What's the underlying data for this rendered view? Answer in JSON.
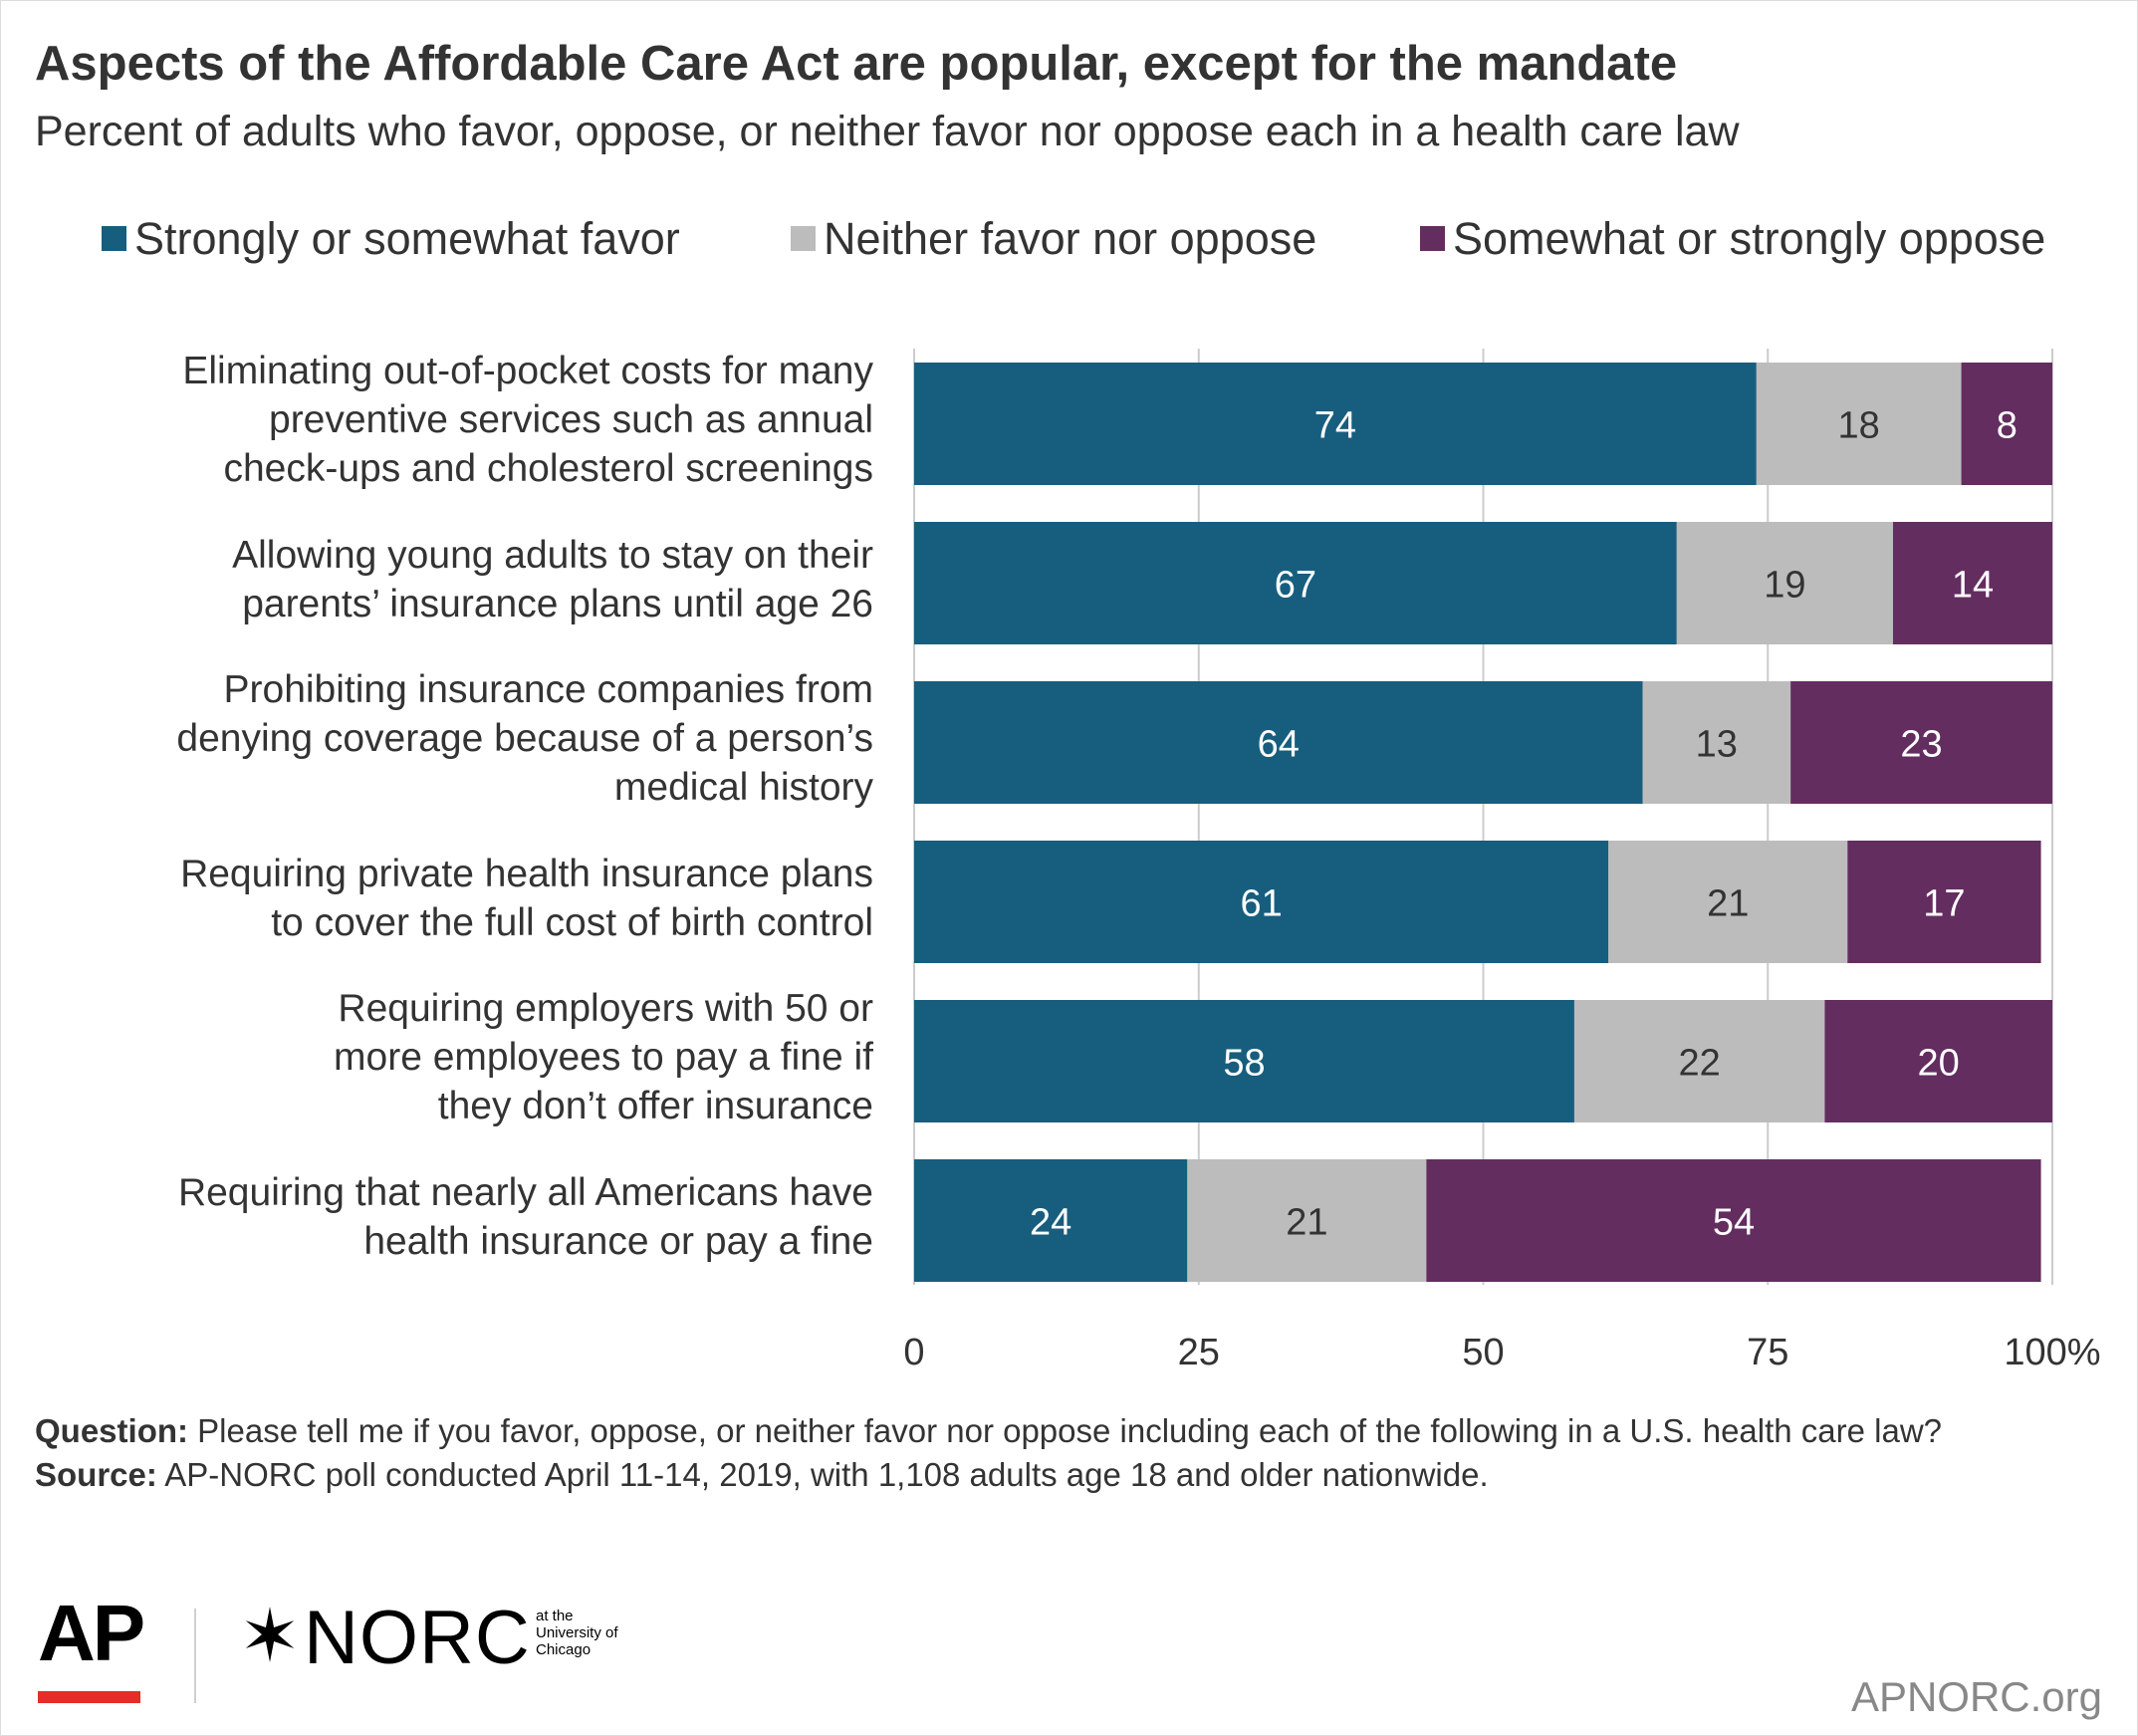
{
  "title": "Aspects of the Affordable Care Act are popular, except for the mandate",
  "subtitle": "Percent of adults who favor, oppose, or neither favor nor oppose each in a health care law",
  "colors": {
    "favor": "#175e7e",
    "neither": "#bcbcbc",
    "oppose": "#632d60",
    "axis": "#cccccc",
    "ap_red": "#e52d27"
  },
  "chart_data": {
    "type": "bar",
    "orientation": "horizontal",
    "stacked": true,
    "categories": [
      "Eliminating out-of-pocket costs for many\npreventive services such as annual \ncheck-ups and cholesterol screenings ",
      "Allowing young adults to stay on their\nparents’ insurance plans until age 26",
      "Prohibiting insurance companies from\ndenying coverage because of a person’s\nmedical history ",
      "Requiring private health insurance plans\nto cover the full cost of birth control",
      "Requiring employers with 50 or\nmore employees to pay a fine if \nthey don’t offer insurance ",
      "Requiring that nearly all Americans have\nhealth insurance or pay a fine"
    ],
    "series": [
      {
        "name": "Strongly or somewhat favor",
        "values": [
          74,
          67,
          64,
          61,
          58,
          24
        ]
      },
      {
        "name": "Neither favor nor oppose",
        "values": [
          18,
          19,
          13,
          21,
          22,
          21
        ]
      },
      {
        "name": "Somewhat or strongly oppose",
        "values": [
          8,
          14,
          23,
          17,
          20,
          54
        ]
      }
    ],
    "xlim": [
      0,
      100
    ],
    "xticks": [
      "0",
      "25",
      "50",
      "75",
      "100%"
    ],
    "grid": true,
    "legend_position": "top"
  },
  "notes": {
    "question_label": "Question:",
    "question_text": " Please tell me if you favor, oppose, or neither favor nor oppose including each of the following in a U.S. health care law?",
    "source_label": "Source:",
    "source_text": " AP-NORC poll conducted April 11-14, 2019, with 1,108 adults age 18 and older nationwide."
  },
  "logos": {
    "ap": "AP",
    "norc": "NORC",
    "norc_star": "✶",
    "norc_sub": "at the\nUniversity of\nChicago"
  },
  "site": "APNORC.org"
}
